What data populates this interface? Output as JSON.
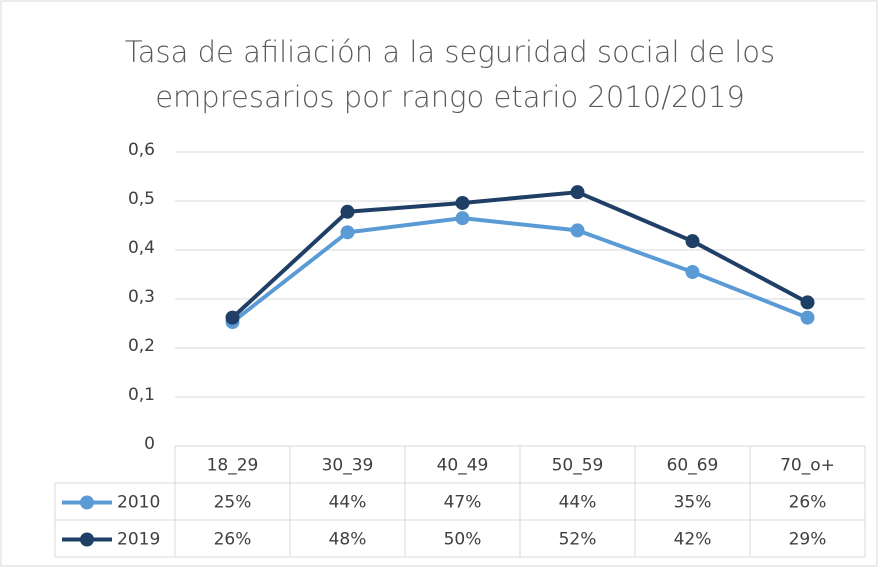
{
  "chart_data": {
    "type": "line",
    "title": "Tasa de afiliación a la seguridad social de los empresarios por rango etario 2010/2019",
    "categories": [
      "18_29",
      "30_39",
      "40_49",
      "50_59",
      "60_69",
      "70_o+"
    ],
    "series": [
      {
        "name": "2010",
        "color": "#5b9bd5",
        "values": [
          0.253,
          0.436,
          0.465,
          0.44,
          0.355,
          0.262
        ],
        "value_labels": [
          "25%",
          "44%",
          "47%",
          "44%",
          "35%",
          "26%"
        ]
      },
      {
        "name": "2019",
        "color": "#1f3f66",
        "values": [
          0.262,
          0.478,
          0.496,
          0.518,
          0.418,
          0.293
        ],
        "value_labels": [
          "26%",
          "48%",
          "50%",
          "52%",
          "42%",
          "29%"
        ]
      }
    ],
    "ylim": [
      0,
      0.6
    ],
    "yticks": [
      0,
      {
        "value": 0.1,
        "label": "0,1"
      },
      {
        "value": 0.2,
        "label": "0,2"
      },
      {
        "value": 0.3,
        "label": "0,3"
      },
      {
        "value": 0.4,
        "label": "0,4"
      },
      {
        "value": 0.5,
        "label": "0,5"
      },
      {
        "value": 0.6,
        "label": "0,6"
      }
    ],
    "grid": true
  }
}
